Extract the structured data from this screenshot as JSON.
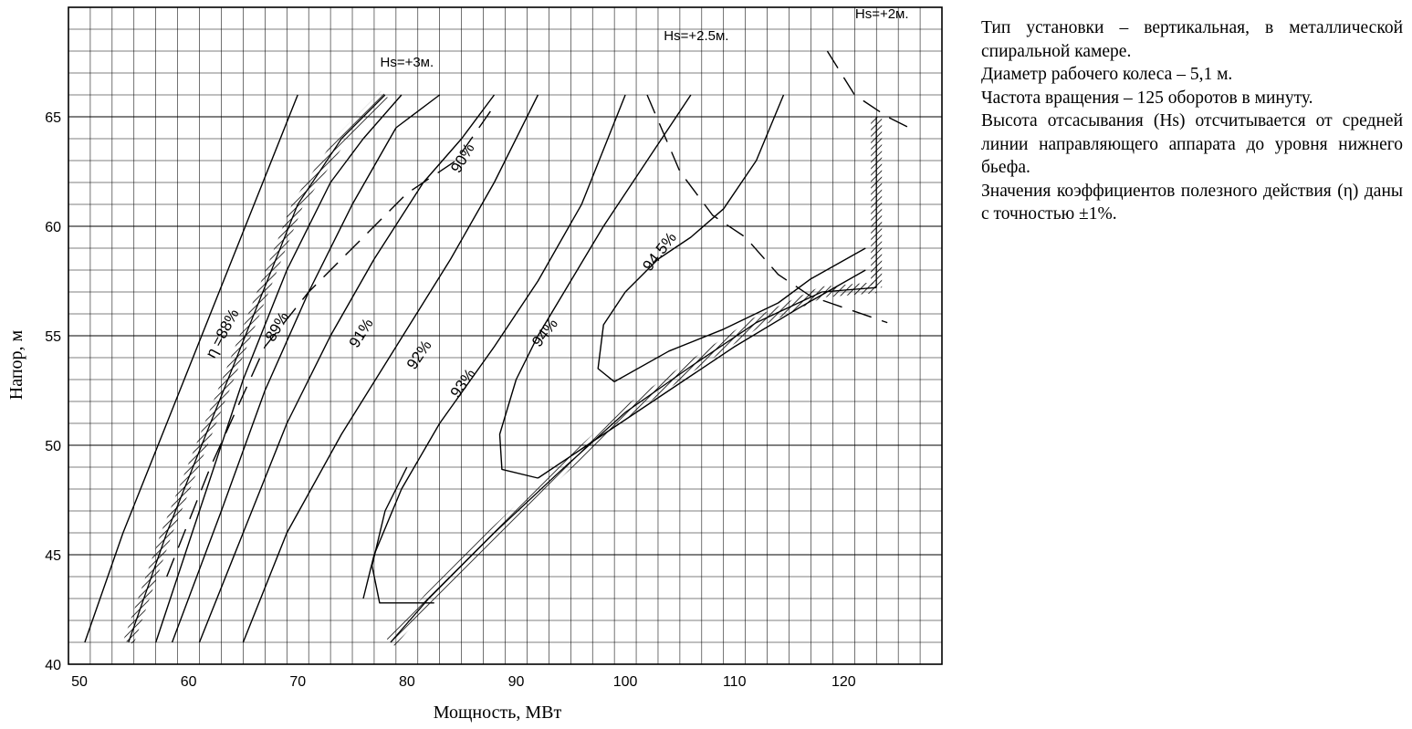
{
  "chart_data": {
    "type": "line",
    "title": "",
    "xlabel": "Мощность, МВт",
    "ylabel": "Напор, м",
    "xlim": [
      49,
      129
    ],
    "ylim": [
      40,
      70
    ],
    "x_ticks": [
      50,
      60,
      70,
      80,
      90,
      100,
      110,
      120
    ],
    "y_ticks": [
      40,
      45,
      50,
      55,
      60,
      65
    ],
    "grid": true,
    "efficiency_curves": [
      {
        "label": "η =88%",
        "points": [
          [
            50.5,
            41
          ],
          [
            54,
            46
          ],
          [
            58,
            51
          ],
          [
            62,
            56
          ],
          [
            66,
            61
          ],
          [
            70,
            66
          ]
        ]
      },
      {
        "label": "89%",
        "points": [
          [
            57,
            41
          ],
          [
            61,
            47
          ],
          [
            65,
            53
          ],
          [
            69,
            58
          ],
          [
            73,
            62
          ],
          [
            76,
            64
          ],
          [
            79.5,
            66
          ]
        ]
      },
      {
        "label": "90%",
        "points": [
          [
            58.5,
            41
          ],
          [
            63,
            47
          ],
          [
            67,
            52.5
          ],
          [
            71,
            57
          ],
          [
            75,
            61
          ],
          [
            79,
            64.5
          ],
          [
            83,
            66
          ]
        ]
      },
      {
        "label": "91%",
        "points": [
          [
            61,
            41
          ],
          [
            65,
            46
          ],
          [
            69,
            51
          ],
          [
            73,
            55
          ],
          [
            77,
            58.5
          ],
          [
            81.5,
            62
          ],
          [
            85,
            64
          ],
          [
            88,
            66
          ]
        ]
      },
      {
        "label": "92%",
        "points": [
          [
            65,
            41
          ],
          [
            69,
            46
          ],
          [
            74,
            50.5
          ],
          [
            79,
            54.5
          ],
          [
            84,
            58.5
          ],
          [
            88,
            62
          ],
          [
            92,
            66
          ]
        ]
      },
      {
        "label": "93%",
        "points": [
          [
            76,
            43
          ],
          [
            77,
            45
          ],
          [
            79.5,
            48
          ],
          [
            83,
            51
          ],
          [
            88,
            54.5
          ],
          [
            92,
            57.5
          ],
          [
            96,
            61
          ],
          [
            100,
            66
          ]
        ]
      },
      {
        "label": "94%",
        "points": [
          [
            92,
            48.5
          ],
          [
            88.7,
            48.9
          ],
          [
            88.5,
            50.5
          ],
          [
            90,
            53
          ],
          [
            92,
            55
          ],
          [
            95,
            57.5
          ],
          [
            98,
            60
          ],
          [
            102,
            63
          ],
          [
            106,
            66
          ]
        ]
      },
      {
        "label": "94.5%",
        "points": [
          [
            99,
            52.9
          ],
          [
            97.5,
            53.5
          ],
          [
            98,
            55.5
          ],
          [
            100,
            57
          ],
          [
            103,
            58.5
          ],
          [
            106,
            59.5
          ],
          [
            109,
            60.8
          ],
          [
            112,
            63
          ],
          [
            114.5,
            66
          ]
        ]
      },
      {
        "label": "",
        "points": [
          [
            99,
            52.9
          ],
          [
            104,
            54.3
          ],
          [
            109,
            55.3
          ],
          [
            114,
            56.5
          ],
          [
            117,
            57.6
          ],
          [
            122,
            59
          ]
        ]
      },
      {
        "label": "",
        "points": [
          [
            92,
            48.5
          ],
          [
            98,
            50.5
          ],
          [
            104,
            52.5
          ],
          [
            110,
            54.5
          ],
          [
            116,
            56.3
          ],
          [
            122,
            58
          ]
        ]
      },
      {
        "label": "",
        "points": [
          [
            82.5,
            42.8
          ],
          [
            77.5,
            42.8
          ],
          [
            76.8,
            44.5
          ],
          [
            78,
            47
          ],
          [
            80,
            49
          ]
        ]
      }
    ],
    "limit_curves": [
      {
        "name": "left-limit",
        "points": [
          [
            54.5,
            41
          ],
          [
            58,
            46
          ],
          [
            62,
            51
          ],
          [
            66,
            56
          ],
          [
            70,
            61
          ],
          [
            74,
            64
          ],
          [
            78,
            66
          ]
        ]
      },
      {
        "name": "bottom-limit",
        "points": [
          [
            78.5,
            41
          ],
          [
            82,
            43
          ],
          [
            88,
            46
          ],
          [
            94,
            48.8
          ],
          [
            100,
            51.5
          ],
          [
            106,
            53.6
          ],
          [
            112,
            55.6
          ],
          [
            118,
            57
          ],
          [
            123,
            57.2
          ]
        ]
      },
      {
        "name": "right-limit",
        "points": [
          [
            123,
            57.2
          ],
          [
            123,
            65
          ]
        ]
      }
    ],
    "suction_height_curves": [
      {
        "label": "Hs=+3м.",
        "points": [
          [
            58,
            44
          ],
          [
            62,
            49
          ],
          [
            67,
            54.5
          ],
          [
            71,
            57
          ],
          [
            76,
            59.5
          ],
          [
            80,
            61.5
          ],
          [
            84.5,
            63
          ],
          [
            88,
            65.5
          ]
        ]
      },
      {
        "label": "Hs=+2.5м.",
        "points": [
          [
            102,
            66
          ],
          [
            105,
            62.5
          ],
          [
            108,
            60.5
          ],
          [
            111,
            59.5
          ],
          [
            114,
            57.8
          ],
          [
            117,
            56.8
          ],
          [
            124,
            55.6
          ]
        ]
      },
      {
        "label": "Hs=+2м.",
        "points": [
          [
            118.5,
            68
          ],
          [
            121,
            66
          ],
          [
            124,
            65
          ],
          [
            126,
            64.5
          ]
        ]
      }
    ],
    "curve_labels": [
      {
        "text": "η =88%",
        "x": 63.5,
        "y": 55,
        "angle": -62
      },
      {
        "text": "89%",
        "x": 68.5,
        "y": 55.3,
        "angle": -60
      },
      {
        "text": "90%",
        "x": 85.5,
        "y": 63,
        "angle": -60
      },
      {
        "text": "91%",
        "x": 76.2,
        "y": 55,
        "angle": -58
      },
      {
        "text": "92%",
        "x": 81.5,
        "y": 54,
        "angle": -56
      },
      {
        "text": "93%",
        "x": 85.5,
        "y": 52.7,
        "angle": -55
      },
      {
        "text": "94%",
        "x": 93,
        "y": 55,
        "angle": -52
      },
      {
        "text": "94.5%",
        "x": 103.5,
        "y": 58.7,
        "angle": -52
      }
    ],
    "hs_labels": [
      {
        "text": "Hs=+3м.",
        "x": 80,
        "y": 67.3
      },
      {
        "text": "Hs=+2.5м.",
        "x": 106.5,
        "y": 68.5
      },
      {
        "text": "Hs=+2м.",
        "x": 123.5,
        "y": 69.5
      }
    ]
  },
  "notes": [
    "Тип установки – вертикальная, в металлической спиральной камере.",
    "Диаметр рабочего колеса – 5,1 м.",
    "Частота вращения – 125 оборотов в минуту.",
    "Высота отсасывания (Hs) отсчитывается от средней линии направляющего аппарата до уровня нижнего бьефа.",
    "Значения коэффициентов полезного действия (η) даны с точностью ±1%."
  ]
}
